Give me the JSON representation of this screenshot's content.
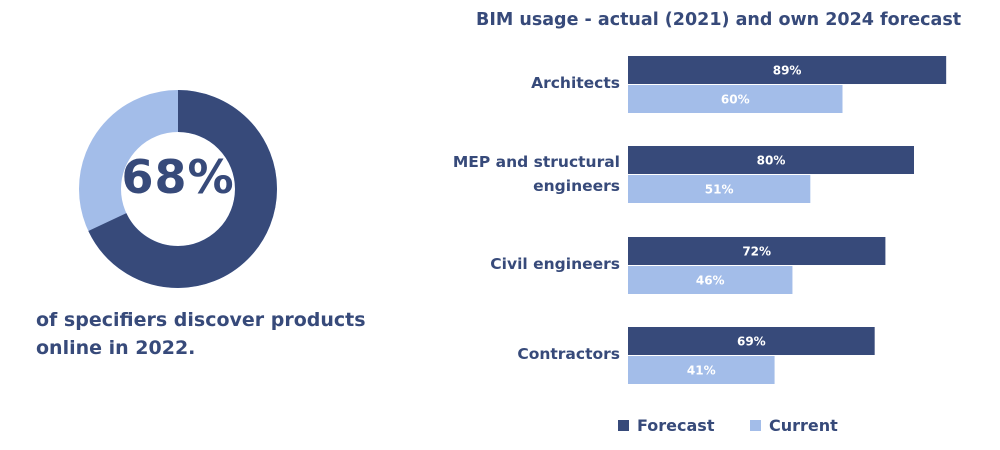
{
  "left_stat": {
    "value": "68%",
    "fraction": 0.68,
    "caption": "of specifiers discover products online in 2022."
  },
  "chart_data": {
    "type": "bar",
    "orientation": "horizontal",
    "title": "BIM usage - actual (2021) and own 2024 forecast",
    "categories": [
      "Architects",
      "MEP and structural engineers",
      "Civil engineers",
      "Contractors"
    ],
    "series": [
      {
        "name": "Forecast",
        "color": "#374a7a",
        "values": [
          89,
          80,
          72,
          69
        ]
      },
      {
        "name": "Current",
        "color": "#a3bde9",
        "values": [
          60,
          51,
          46,
          41
        ]
      }
    ],
    "unit": "%",
    "legend": "bottom",
    "grid": false
  },
  "colors": {
    "dark": "#374a7a",
    "light": "#a3bde9"
  }
}
